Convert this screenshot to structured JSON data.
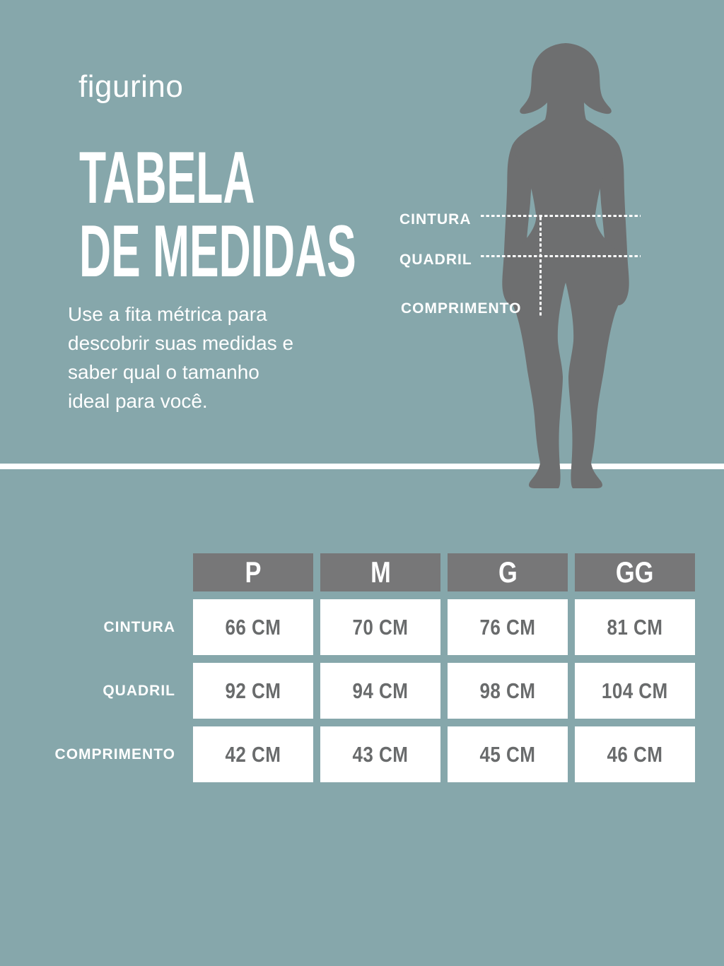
{
  "brand": {
    "logo_text": "figurino"
  },
  "header": {
    "title_line1": "TABELA",
    "title_line2": "DE MEDIDAS"
  },
  "description": {
    "lines": [
      "Use a fita métrica para",
      "descobrir suas medidas e",
      "saber qual o tamanho",
      "ideal para você."
    ]
  },
  "diagram": {
    "silhouette_icon": "female-body-silhouette",
    "labels": {
      "waist": "CINTURA",
      "hip": "QUADRIL",
      "length": "COMPRIMENTO"
    }
  },
  "size_table": {
    "size_headers": [
      "P",
      "M",
      "G",
      "GG"
    ],
    "rows": [
      {
        "label": "CINTURA",
        "values": [
          "66 CM",
          "70 CM",
          "76 CM",
          "81 CM"
        ]
      },
      {
        "label": "QUADRIL",
        "values": [
          "92 CM",
          "94 CM",
          "98 CM",
          "104 CM"
        ]
      },
      {
        "label": "COMPRIMENTO",
        "values": [
          "42 CM",
          "43 CM",
          "45 CM",
          "46 CM"
        ]
      }
    ]
  },
  "colors": {
    "background": "#86a7ab",
    "silhouette": "#6e6f70",
    "table_header_bg": "#777778",
    "table_value_text": "#696b6c",
    "white": "#ffffff"
  }
}
